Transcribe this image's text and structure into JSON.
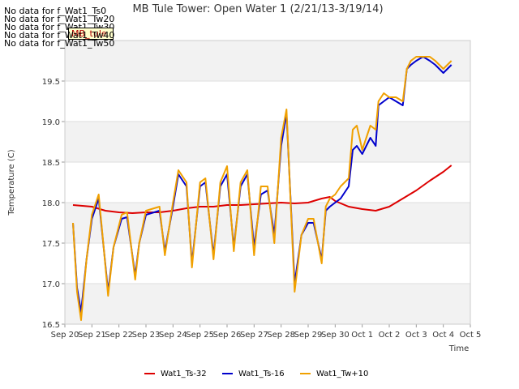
{
  "chart_data": {
    "type": "line",
    "title": "MB Tule Tower: Open Water 1 (2/21/13-3/19/14)",
    "xlabel": "Time",
    "ylabel": "Temperature (C)",
    "ylim": [
      16.5,
      20.0
    ],
    "yticks": [
      "16.5",
      "17.0",
      "17.5",
      "18.0",
      "18.5",
      "19.0",
      "19.5"
    ],
    "ytick_values": [
      16.5,
      17.0,
      17.5,
      18.0,
      18.5,
      19.0,
      19.5
    ],
    "xlim": [
      0,
      15
    ],
    "xticks": [
      "Sep 20",
      "Sep 21",
      "Sep 22",
      "Sep 23",
      "Sep 24",
      "Sep 25",
      "Sep 26",
      "Sep 27",
      "Sep 28",
      "Sep 29",
      "Sep 30",
      "Oct 1",
      "Oct 2",
      "Oct 3",
      "Oct 4",
      "Oct 5"
    ],
    "grid": "horizontal banded",
    "legend_position": "bottom-center",
    "series": [
      {
        "name": "Wat1_Ts-32",
        "color": "#dd0000",
        "x": [
          0.3,
          1.0,
          1.5,
          2.0,
          2.5,
          3.0,
          3.5,
          4.0,
          4.5,
          5.0,
          5.5,
          6.0,
          6.5,
          7.0,
          7.5,
          8.0,
          8.5,
          9.0,
          9.5,
          9.8,
          10.0,
          10.5,
          11.0,
          11.5,
          12.0,
          12.5,
          13.0,
          13.5,
          14.0,
          14.3
        ],
        "values": [
          17.97,
          17.95,
          17.9,
          17.88,
          17.87,
          17.88,
          17.88,
          17.9,
          17.93,
          17.95,
          17.95,
          17.97,
          17.97,
          17.98,
          17.99,
          18.0,
          17.99,
          18.0,
          18.05,
          18.07,
          18.02,
          17.95,
          17.92,
          17.9,
          17.95,
          18.05,
          18.15,
          18.27,
          18.38,
          18.46
        ]
      },
      {
        "name": "Wat1_Ts-16",
        "color": "#0000cc",
        "x": [
          0.3,
          0.45,
          0.6,
          0.8,
          1.0,
          1.25,
          1.45,
          1.6,
          1.8,
          2.1,
          2.3,
          2.6,
          2.75,
          3.0,
          3.5,
          3.7,
          4.0,
          4.2,
          4.5,
          4.7,
          5.0,
          5.2,
          5.5,
          5.75,
          6.0,
          6.25,
          6.5,
          6.75,
          7.0,
          7.25,
          7.5,
          7.75,
          8.0,
          8.2,
          8.5,
          8.75,
          9.0,
          9.2,
          9.5,
          9.65,
          9.8,
          10.0,
          10.2,
          10.5,
          10.65,
          10.8,
          11.0,
          11.3,
          11.5,
          11.6,
          11.8,
          12.0,
          12.25,
          12.5,
          12.65,
          12.8,
          13.0,
          13.25,
          13.5,
          13.7,
          13.85,
          14.0,
          14.3
        ],
        "values": [
          17.75,
          16.95,
          16.65,
          17.3,
          17.8,
          18.05,
          17.4,
          16.9,
          17.45,
          17.8,
          17.82,
          17.1,
          17.5,
          17.85,
          17.9,
          17.4,
          17.95,
          18.35,
          18.2,
          17.25,
          18.2,
          18.25,
          17.35,
          18.2,
          18.35,
          17.45,
          18.2,
          18.35,
          17.45,
          18.1,
          18.15,
          17.6,
          18.7,
          19.1,
          17.0,
          17.6,
          17.75,
          17.75,
          17.3,
          17.9,
          17.95,
          18.0,
          18.05,
          18.2,
          18.65,
          18.7,
          18.6,
          18.8,
          18.7,
          19.2,
          19.25,
          19.3,
          19.25,
          19.2,
          19.65,
          19.7,
          19.75,
          19.8,
          19.75,
          19.7,
          19.65,
          19.6,
          19.7
        ]
      },
      {
        "name": "Wat1_Tw+10",
        "color": "#f0a000",
        "x": [
          0.3,
          0.45,
          0.6,
          0.8,
          1.0,
          1.25,
          1.45,
          1.6,
          1.8,
          2.1,
          2.3,
          2.6,
          2.75,
          3.0,
          3.5,
          3.7,
          4.0,
          4.2,
          4.5,
          4.7,
          5.0,
          5.2,
          5.5,
          5.75,
          6.0,
          6.25,
          6.5,
          6.75,
          7.0,
          7.25,
          7.5,
          7.75,
          8.0,
          8.2,
          8.5,
          8.75,
          9.0,
          9.2,
          9.5,
          9.65,
          9.8,
          10.0,
          10.2,
          10.5,
          10.65,
          10.8,
          11.0,
          11.3,
          11.5,
          11.6,
          11.8,
          12.0,
          12.25,
          12.5,
          12.65,
          12.8,
          13.0,
          13.25,
          13.5,
          13.7,
          13.85,
          14.0,
          14.3
        ],
        "values": [
          17.75,
          16.9,
          16.55,
          17.3,
          17.85,
          18.1,
          17.4,
          16.85,
          17.45,
          17.85,
          17.88,
          17.05,
          17.5,
          17.9,
          17.95,
          17.35,
          18.0,
          18.4,
          18.25,
          17.2,
          18.25,
          18.3,
          17.3,
          18.25,
          18.45,
          17.4,
          18.25,
          18.4,
          17.35,
          18.2,
          18.2,
          17.5,
          18.8,
          19.15,
          16.9,
          17.6,
          17.8,
          17.8,
          17.25,
          17.95,
          18.05,
          18.1,
          18.2,
          18.3,
          18.9,
          18.95,
          18.65,
          18.95,
          18.9,
          19.25,
          19.35,
          19.3,
          19.3,
          19.25,
          19.65,
          19.75,
          19.8,
          19.8,
          19.8,
          19.75,
          19.7,
          19.65,
          19.75
        ]
      }
    ],
    "no_data_notes": [
      "No data for f_Wat1_Ts0",
      "No data for f_Wat1_Tw20",
      "No data for f_Wat1_Tw30",
      "No data for f_Wat1_Tw40",
      "No data for f_Wat1_Tw50"
    ],
    "overlay_label": "MB_tule"
  }
}
